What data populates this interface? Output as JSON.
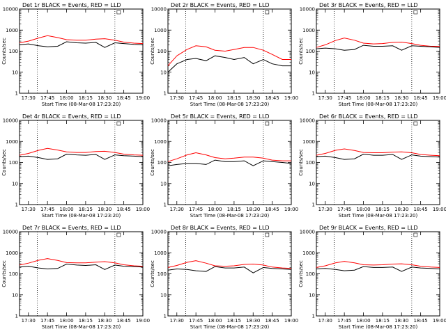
{
  "time_ticks": [
    "17:30",
    "17:45",
    "18:00",
    "18:15",
    "18:30",
    "18:45",
    "19:00"
  ],
  "y_ticks": [
    "1",
    "10",
    "100",
    "1000",
    "10000"
  ],
  "xlabel": "Start Time (08-Mar-08 17:23:20)",
  "ylabel": "Counts/sec",
  "colors": {
    "events": "#000000",
    "lld": "#ff0000"
  },
  "chart_data": [
    {
      "type": "line",
      "title": "Det 1r BLACK = Events, RED = LLD",
      "x": [
        "17:23",
        "17:30",
        "17:38",
        "17:45",
        "17:53",
        "18:00",
        "18:08",
        "18:15",
        "18:23",
        "18:30",
        "18:38",
        "18:45",
        "18:53",
        "19:00"
      ],
      "series": [
        {
          "values": [
            250,
            300,
            420,
            540,
            440,
            350,
            330,
            330,
            370,
            390,
            330,
            270,
            240,
            230
          ]
        },
        {
          "values": [
            200,
            220,
            180,
            160,
            170,
            280,
            250,
            240,
            260,
            150,
            250,
            230,
            210,
            200
          ]
        }
      ],
      "ylim": [
        1,
        10000
      ],
      "ylog": true,
      "vlines": [
        "17:37",
        "18:38"
      ],
      "grid": false
    },
    {
      "type": "line",
      "title": "Det 2r BLACK = Events, RED = LLD",
      "x": [
        "17:23",
        "17:30",
        "17:38",
        "17:45",
        "17:53",
        "18:00",
        "18:08",
        "18:15",
        "18:23",
        "18:30",
        "18:38",
        "18:45",
        "18:53",
        "19:00"
      ],
      "series": [
        {
          "values": [
            20,
            60,
            120,
            180,
            160,
            110,
            100,
            120,
            150,
            150,
            110,
            70,
            40,
            40
          ]
        },
        {
          "values": [
            10,
            25,
            40,
            45,
            35,
            60,
            50,
            40,
            50,
            25,
            40,
            25,
            20,
            20
          ]
        }
      ],
      "ylim": [
        1,
        10000
      ],
      "ylog": true,
      "vlines": [
        "17:37",
        "18:38"
      ],
      "grid": false
    },
    {
      "type": "line",
      "title": "Det 3r BLACK = Events, RED = LLD",
      "x": [
        "17:23",
        "17:30",
        "17:38",
        "17:45",
        "17:53",
        "18:00",
        "18:08",
        "18:15",
        "18:23",
        "18:30",
        "18:38",
        "18:45",
        "18:53",
        "19:00"
      ],
      "series": [
        {
          "values": [
            150,
            200,
            320,
            420,
            330,
            240,
            220,
            230,
            260,
            270,
            230,
            190,
            170,
            170
          ]
        },
        {
          "values": [
            130,
            140,
            130,
            110,
            120,
            190,
            170,
            170,
            180,
            110,
            180,
            170,
            160,
            150
          ]
        }
      ],
      "ylim": [
        1,
        10000
      ],
      "ylog": true,
      "vlines": [
        "17:37",
        "18:38"
      ],
      "grid": false
    },
    {
      "type": "line",
      "title": "Det 4r BLACK = Events, RED = LLD",
      "x": [
        "17:23",
        "17:30",
        "17:38",
        "17:45",
        "17:53",
        "18:00",
        "18:08",
        "18:15",
        "18:23",
        "18:30",
        "18:38",
        "18:45",
        "18:53",
        "19:00"
      ],
      "series": [
        {
          "values": [
            220,
            270,
            380,
            470,
            390,
            320,
            300,
            300,
            330,
            340,
            300,
            250,
            230,
            220
          ]
        },
        {
          "values": [
            190,
            200,
            170,
            140,
            150,
            250,
            230,
            220,
            240,
            140,
            230,
            210,
            200,
            190
          ]
        }
      ],
      "ylim": [
        1,
        10000
      ],
      "ylog": true,
      "vlines": [
        "17:37",
        "18:38"
      ],
      "grid": false
    },
    {
      "type": "line",
      "title": "Det 5r BLACK = Events, RED = LLD",
      "x": [
        "17:23",
        "17:30",
        "17:38",
        "17:45",
        "17:53",
        "18:00",
        "18:08",
        "18:15",
        "18:23",
        "18:30",
        "18:38",
        "18:45",
        "18:53",
        "19:00"
      ],
      "series": [
        {
          "values": [
            110,
            150,
            230,
            290,
            230,
            170,
            150,
            160,
            180,
            180,
            160,
            130,
            120,
            120
          ]
        },
        {
          "values": [
            70,
            80,
            90,
            90,
            80,
            130,
            110,
            110,
            120,
            70,
            120,
            110,
            100,
            90
          ]
        }
      ],
      "ylim": [
        1,
        10000
      ],
      "ylog": true,
      "vlines": [
        "17:37",
        "18:38"
      ],
      "grid": false
    },
    {
      "type": "line",
      "title": "Det 6r BLACK = Events, RED = LLD",
      "x": [
        "17:23",
        "17:30",
        "17:38",
        "17:45",
        "17:53",
        "18:00",
        "18:08",
        "18:15",
        "18:23",
        "18:30",
        "18:38",
        "18:45",
        "18:53",
        "19:00"
      ],
      "series": [
        {
          "values": [
            220,
            270,
            380,
            440,
            370,
            300,
            290,
            290,
            310,
            320,
            290,
            240,
            220,
            210
          ]
        },
        {
          "values": [
            190,
            200,
            170,
            140,
            150,
            250,
            220,
            220,
            240,
            140,
            230,
            200,
            190,
            180
          ]
        }
      ],
      "ylim": [
        1,
        10000
      ],
      "ylog": true,
      "vlines": [
        "17:37",
        "18:38"
      ],
      "grid": false
    },
    {
      "type": "line",
      "title": "Det 7r BLACK = Events, RED = LLD",
      "x": [
        "17:23",
        "17:30",
        "17:38",
        "17:45",
        "17:53",
        "18:00",
        "18:08",
        "18:15",
        "18:23",
        "18:30",
        "18:38",
        "18:45",
        "18:53",
        "19:00"
      ],
      "series": [
        {
          "values": [
            260,
            320,
            440,
            530,
            430,
            340,
            330,
            330,
            360,
            380,
            330,
            270,
            240,
            230
          ]
        },
        {
          "values": [
            210,
            230,
            190,
            170,
            180,
            290,
            260,
            250,
            270,
            160,
            260,
            230,
            220,
            210
          ]
        }
      ],
      "ylim": [
        1,
        10000
      ],
      "ylog": true,
      "vlines": [
        "17:37",
        "18:38"
      ],
      "grid": false
    },
    {
      "type": "line",
      "title": "Det 8r BLACK = Events, RED = LLD",
      "x": [
        "17:23",
        "17:30",
        "17:38",
        "17:45",
        "17:53",
        "18:00",
        "18:08",
        "18:15",
        "18:23",
        "18:30",
        "18:38",
        "18:45",
        "18:53",
        "19:00"
      ],
      "series": [
        {
          "values": [
            200,
            250,
            350,
            420,
            320,
            240,
            230,
            240,
            280,
            290,
            260,
            210,
            190,
            180
          ]
        },
        {
          "values": [
            150,
            170,
            160,
            140,
            130,
            220,
            190,
            190,
            210,
            110,
            200,
            180,
            170,
            160
          ]
        }
      ],
      "ylim": [
        1,
        10000
      ],
      "ylog": true,
      "vlines": [
        "17:37",
        "18:38"
      ],
      "grid": false
    },
    {
      "type": "line",
      "title": "Det 9r BLACK = Events, RED = LLD",
      "x": [
        "17:23",
        "17:30",
        "17:38",
        "17:45",
        "17:53",
        "18:00",
        "18:08",
        "18:15",
        "18:23",
        "18:30",
        "18:38",
        "18:45",
        "18:53",
        "19:00"
      ],
      "series": [
        {
          "values": [
            200,
            240,
            330,
            390,
            330,
            270,
            260,
            270,
            290,
            300,
            270,
            230,
            210,
            200
          ]
        },
        {
          "values": [
            170,
            180,
            160,
            140,
            150,
            220,
            200,
            200,
            210,
            130,
            210,
            190,
            180,
            170
          ]
        }
      ],
      "ylim": [
        1,
        10000
      ],
      "ylog": true,
      "vlines": [
        "17:37",
        "18:38"
      ],
      "grid": false
    }
  ]
}
